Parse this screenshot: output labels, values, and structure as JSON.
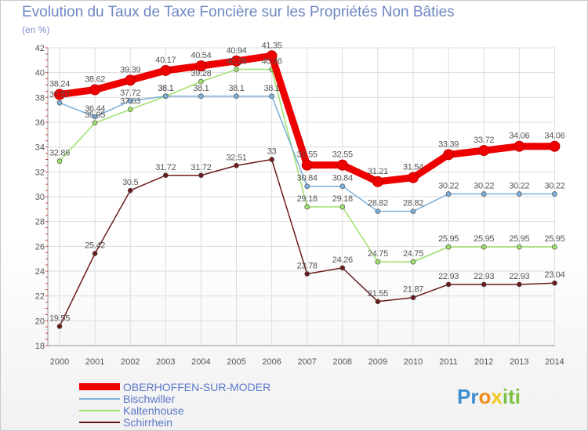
{
  "chart_data": {
    "type": "line",
    "title": "Evolution du Taux de Taxe Foncière sur les Propriétés Non Bâties",
    "ylabel": "(en %)",
    "xlabel": "",
    "ylim": [
      18,
      42
    ],
    "yticks": [
      "18",
      "20",
      "22",
      "24",
      "26",
      "28",
      "30",
      "32",
      "34",
      "36",
      "38",
      "40",
      "42"
    ],
    "categories": [
      "2000",
      "2001",
      "2002",
      "2003",
      "2004",
      "2005",
      "2006",
      "2007",
      "2008",
      "2009",
      "2010",
      "2011",
      "2012",
      "2013",
      "2014"
    ],
    "grid": true,
    "legend_position": "bottom-left",
    "series": [
      {
        "name": "Schirrhein",
        "color": "#6b1a1a",
        "values": [
          19.55,
          25.42,
          30.5,
          31.72,
          31.72,
          32.51,
          33,
          23.78,
          24.26,
          21.55,
          21.87,
          22.93,
          22.93,
          22.93,
          23.04
        ],
        "labels": [
          "19.55",
          "25.42",
          "30.5",
          "31.72",
          "31.72",
          "32.51",
          "33",
          "23.78",
          "24.26",
          "21.55",
          "21.87",
          "22.93",
          "22.93",
          "22.93",
          "23.04"
        ]
      },
      {
        "name": "Kaltenhouse",
        "color": "#9ee06a",
        "values": [
          32.86,
          35.95,
          37.03,
          38.1,
          39.28,
          40.26,
          40.26,
          29.18,
          29.18,
          24.75,
          24.75,
          25.95,
          25.95,
          25.95,
          25.95
        ],
        "labels": [
          "32.86",
          "35.95",
          "37.03",
          "38.1",
          "39.28",
          "40.26",
          "40.26",
          "29.18",
          "29.18",
          "24.75",
          "24.75",
          "25.95",
          "25.95",
          "25.95",
          "25.95"
        ]
      },
      {
        "name": "Bischwiller",
        "color": "#7aaedb",
        "values": [
          37.57,
          36.44,
          37.72,
          38.1,
          38.1,
          38.1,
          38.1,
          30.84,
          30.84,
          28.82,
          28.82,
          30.22,
          30.22,
          30.22,
          30.22
        ],
        "labels": [
          "37.57",
          "36.44",
          "37.72",
          "38.1",
          "38.1",
          "38.1",
          "38.1",
          "30.84",
          "30.84",
          "28.82",
          "28.82",
          "30.22",
          "30.22",
          "30.22",
          "30.22"
        ]
      },
      {
        "name": "OBERHOFFEN-SUR-MODER",
        "color": "#ee0000",
        "values": [
          38.24,
          38.62,
          39.39,
          40.17,
          40.54,
          40.94,
          41.35,
          32.55,
          32.55,
          31.21,
          31.54,
          33.39,
          33.72,
          34.06,
          34.06
        ],
        "labels": [
          "38.24",
          "38.62",
          "39.39",
          "40.17",
          "40.54",
          "40.94",
          "41.35",
          "32.55",
          "32.55",
          "31.21",
          "31.54",
          "33.39",
          "33.72",
          "34.06",
          "34.06"
        ]
      }
    ]
  },
  "legend": {
    "items": [
      {
        "label": "OBERHOFFEN-SUR-MODER",
        "color": "#ee0000",
        "thick": true
      },
      {
        "label": "Bischwiller",
        "color": "#7aaedb",
        "thick": false
      },
      {
        "label": "Kaltenhouse",
        "color": "#9ee06a",
        "thick": false
      },
      {
        "label": "Schirrhein",
        "color": "#6b1a1a",
        "thick": false
      }
    ]
  },
  "logo": {
    "letters": [
      "P",
      "r",
      "o",
      "x",
      "i",
      "t",
      "i"
    ],
    "colors": [
      "#3d8ed0",
      "#3d8ed0",
      "#f08a1d",
      "#f0c81d",
      "#7cc242",
      "#7cc242",
      "#7cc242"
    ]
  }
}
